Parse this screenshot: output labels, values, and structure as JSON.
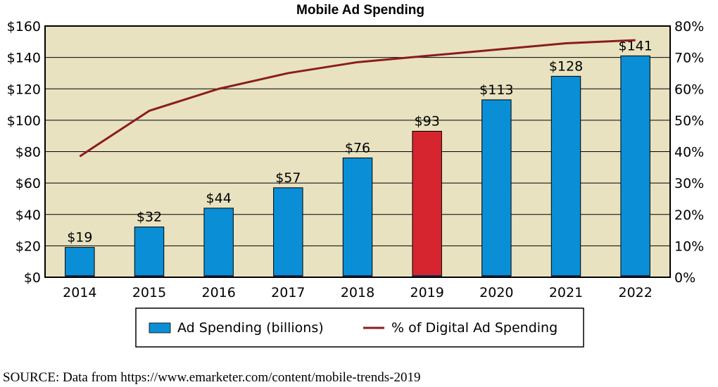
{
  "chart_data": {
    "type": "bar",
    "title": "Mobile Ad Spending",
    "categories": [
      "2014",
      "2015",
      "2016",
      "2017",
      "2018",
      "2019",
      "2020",
      "2021",
      "2022"
    ],
    "series": [
      {
        "name": "Ad Spending (billions)",
        "type": "bar",
        "axis": "left",
        "values": [
          19,
          32,
          44,
          57,
          76,
          93,
          113,
          128,
          141
        ],
        "labels": [
          "$19",
          "$32",
          "$44",
          "$57",
          "$76",
          "$93",
          "$113",
          "$128",
          "$141"
        ],
        "color": "#0a8fd6",
        "highlight_color": "#d6252e",
        "highlight_index": 5
      },
      {
        "name": "% of Digital Ad Spending",
        "type": "line",
        "axis": "right",
        "values": [
          38.5,
          53,
          60,
          65,
          68.5,
          70.5,
          72.5,
          74.5,
          75.5
        ],
        "color": "#8b1c1f"
      }
    ],
    "y_left": {
      "ylim": [
        0,
        160
      ],
      "ticks": [
        0,
        20,
        40,
        60,
        80,
        100,
        120,
        140,
        160
      ],
      "tick_labels": [
        "$0",
        "$20",
        "$40",
        "$60",
        "$80",
        "$100",
        "$120",
        "$140",
        "$160"
      ]
    },
    "y_right": {
      "ylim": [
        0,
        80
      ],
      "ticks": [
        0,
        10,
        20,
        30,
        40,
        50,
        60,
        70,
        80
      ],
      "tick_labels": [
        "0%",
        "10%",
        "20%",
        "30%",
        "40%",
        "50%",
        "60%",
        "70%",
        "80%"
      ]
    },
    "grid": true,
    "legend_position": "bottom-center",
    "plot_background": "#e8e2c0"
  },
  "source": "SOURCE: Data from https://www.emarketer.com/content/mobile-trends-2019"
}
